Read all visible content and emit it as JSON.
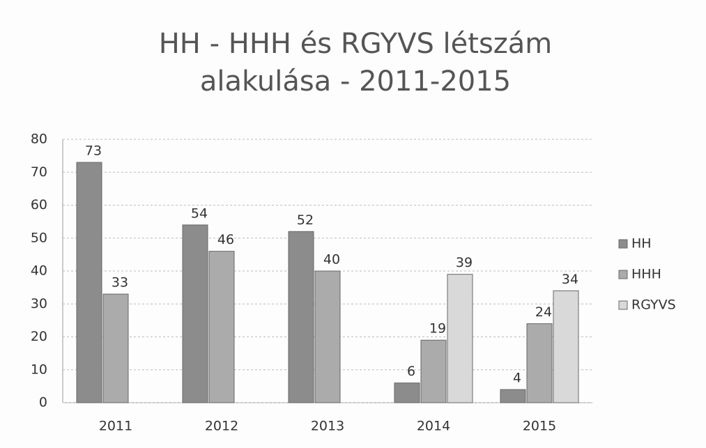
{
  "chart_data": {
    "type": "bar",
    "title": "HH - HHH és RGYVS létszám alakulása - 2011-2015",
    "categories": [
      "2011",
      "2012",
      "2013",
      "2014",
      "2015"
    ],
    "series": [
      {
        "name": "HH",
        "color": "#8c8c8c",
        "values": [
          73,
          54,
          52,
          6,
          4
        ]
      },
      {
        "name": "HHH",
        "color": "#ababab",
        "values": [
          33,
          46,
          40,
          19,
          24
        ]
      },
      {
        "name": "RGYVS",
        "color": "#d9d9d9",
        "values": [
          null,
          null,
          null,
          39,
          34
        ]
      }
    ],
    "ylim": [
      0,
      80
    ],
    "yticks": [
      0,
      10,
      20,
      30,
      40,
      50,
      60,
      70,
      80
    ],
    "grid": true,
    "legend": "right"
  }
}
